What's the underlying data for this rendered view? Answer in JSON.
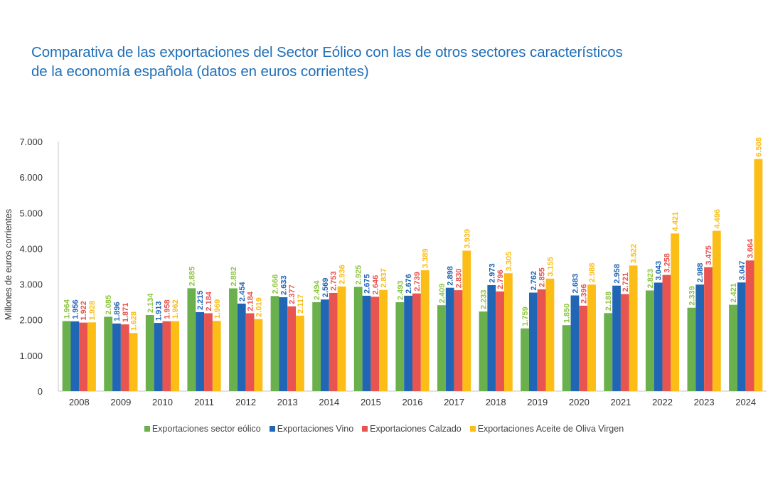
{
  "title_lines": [
    "Comparativa de las exportaciones del Sector Eólico con las de otros sectores característicos",
    "de la economía española (datos en euros corrientes)"
  ],
  "chart_data": {
    "type": "bar",
    "title": "Comparativa de las exportaciones del Sector Eólico con las de otros sectores característicos de la economía española (datos en euros corrientes)",
    "xlabel": "",
    "ylabel": "Millones de euros corrientes",
    "ylim": [
      0,
      7000
    ],
    "yticks": [
      0,
      1000,
      2000,
      3000,
      4000,
      5000,
      6000,
      7000
    ],
    "ytick_labels": [
      "0",
      "1.000",
      "2.000",
      "3.000",
      "4.000",
      "5.000",
      "6.000",
      "7.000"
    ],
    "grid": false,
    "legend_position": "bottom",
    "categories": [
      "2008",
      "2009",
      "2010",
      "2011",
      "2012",
      "2013",
      "2014",
      "2015",
      "2016",
      "2017",
      "2018",
      "2019",
      "2020",
      "2021",
      "2022",
      "2023",
      "2024"
    ],
    "series": [
      {
        "name": "Exportaciones sector eólico",
        "color": "#6ab04c",
        "label_color": "#8cc63f",
        "values": [
          1964,
          2085,
          2134,
          2885,
          2882,
          2666,
          2494,
          2925,
          2493,
          2409,
          2233,
          1759,
          1850,
          2188,
          2823,
          2339,
          2421
        ]
      },
      {
        "name": "Exportaciones Vino",
        "color": "#2166b5",
        "label_color": "#2166b5",
        "values": [
          1956,
          1896,
          1913,
          2215,
          2454,
          2633,
          2569,
          2675,
          2676,
          2898,
          2973,
          2762,
          2683,
          2958,
          3043,
          2988,
          3047
        ]
      },
      {
        "name": "Exportaciones Calzado",
        "color": "#e8544f",
        "label_color": "#e8544f",
        "values": [
          1922,
          1871,
          1958,
          2184,
          2184,
          2377,
          2753,
          2646,
          2739,
          2830,
          2796,
          2855,
          2396,
          2721,
          3258,
          3475,
          3664
        ]
      },
      {
        "name": "Exportaciones Aceite de Oliva Virgen",
        "color": "#fbbd16",
        "label_color": "#fbbd16",
        "values": [
          1928,
          1628,
          1962,
          1969,
          2019,
          2117,
          2936,
          2837,
          3389,
          3939,
          3305,
          3155,
          2988,
          3522,
          4421,
          4496,
          6508
        ]
      }
    ],
    "data_label_format": "thousands-dot"
  }
}
